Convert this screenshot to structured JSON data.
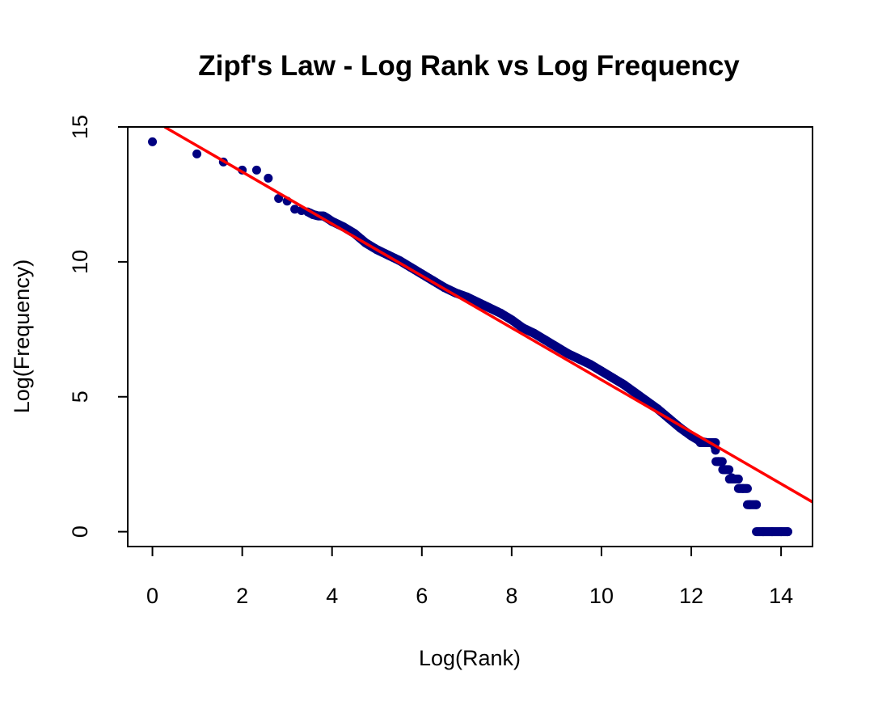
{
  "chart_data": {
    "type": "scatter",
    "title": "Zipf's Law - Log Rank vs Log Frequency",
    "xlabel": "Log(Rank)",
    "ylabel": "Log(Frequency)",
    "xlim": [
      -0.55,
      14.7
    ],
    "ylim": [
      -0.55,
      15
    ],
    "xticks": [
      0,
      2,
      4,
      6,
      8,
      10,
      12,
      14
    ],
    "yticks": [
      0,
      5,
      10,
      15
    ],
    "grid": false,
    "legend": "none",
    "colors": {
      "points": "#000080",
      "line": "#ff0000"
    },
    "series": [
      {
        "type": "points",
        "x": [
          0,
          0.99,
          1.58,
          2.0,
          2.32,
          2.58,
          2.81,
          3.0,
          3.17,
          3.32,
          3.46,
          3.58,
          3.7,
          3.81,
          3.91,
          4.0,
          4.25,
          4.5,
          4.75,
          5.0,
          5.25,
          5.5,
          5.75,
          6.0,
          6.25,
          6.5,
          6.75,
          7.0,
          7.25,
          7.5,
          7.75,
          8.0,
          8.25,
          8.5,
          8.75,
          9.0,
          9.25,
          9.5,
          9.75,
          10.0,
          10.25,
          10.5,
          10.75,
          11.0,
          11.25,
          11.5,
          11.75,
          12.0,
          12.2,
          12.35,
          12.5,
          12.6,
          12.75,
          12.9,
          13.0,
          13.15,
          13.3,
          13.45,
          13.6,
          13.8,
          14.0,
          14.15
        ],
        "y": [
          14.45,
          14.0,
          13.7,
          13.4,
          13.4,
          13.1,
          12.35,
          12.25,
          11.95,
          11.9,
          11.85,
          11.75,
          11.7,
          11.7,
          11.6,
          11.5,
          11.3,
          11.05,
          10.7,
          10.45,
          10.25,
          10.05,
          9.8,
          9.55,
          9.3,
          9.05,
          8.85,
          8.7,
          8.5,
          8.3,
          8.1,
          7.85,
          7.55,
          7.35,
          7.1,
          6.85,
          6.6,
          6.4,
          6.2,
          5.95,
          5.7,
          5.45,
          5.15,
          4.85,
          4.55,
          4.2,
          3.85,
          3.55,
          3.35,
          3.3,
          3.3,
          2.6,
          2.3,
          2.0,
          1.95,
          1.6,
          1.0,
          1.0,
          0.0,
          0.0,
          0.0,
          0.0
        ]
      },
      {
        "type": "line",
        "x": [
          0.27,
          14.7
        ],
        "y": [
          15.0,
          1.1
        ]
      }
    ]
  }
}
